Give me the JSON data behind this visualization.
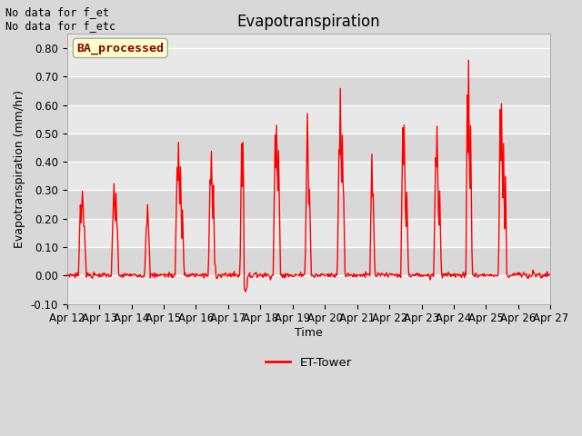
{
  "title": "Evapotranspiration",
  "ylabel": "Evapotranspiration (mm/hr)",
  "xlabel": "Time",
  "ylim": [
    -0.1,
    0.85
  ],
  "yticks": [
    -0.1,
    0.0,
    0.1,
    0.2,
    0.3,
    0.4,
    0.5,
    0.6,
    0.7,
    0.8
  ],
  "bg_light": "#e8e8e8",
  "bg_dark": "#d8d8d8",
  "line_color": "#ff0000",
  "line_width": 1.0,
  "legend_label": "ET-Tower",
  "top_left_text1": "No data for f_et",
  "top_left_text2": "No data for f_etc",
  "watermark_text": "BA_processed",
  "watermark_color": "#8B0000",
  "watermark_bg": "#ffffcc",
  "xtick_labels": [
    "Apr 12",
    "Apr 13",
    "Apr 14",
    "Apr 15",
    "Apr 16",
    "Apr 17",
    "Apr 18",
    "Apr 19",
    "Apr 20",
    "Apr 21",
    "Apr 22",
    "Apr 23",
    "Apr 24",
    "Apr 25",
    "Apr 26",
    "Apr 27"
  ],
  "title_fontsize": 12,
  "label_fontsize": 9,
  "tick_fontsize": 8.5,
  "figsize": [
    6.4,
    4.8
  ],
  "dpi": 100
}
